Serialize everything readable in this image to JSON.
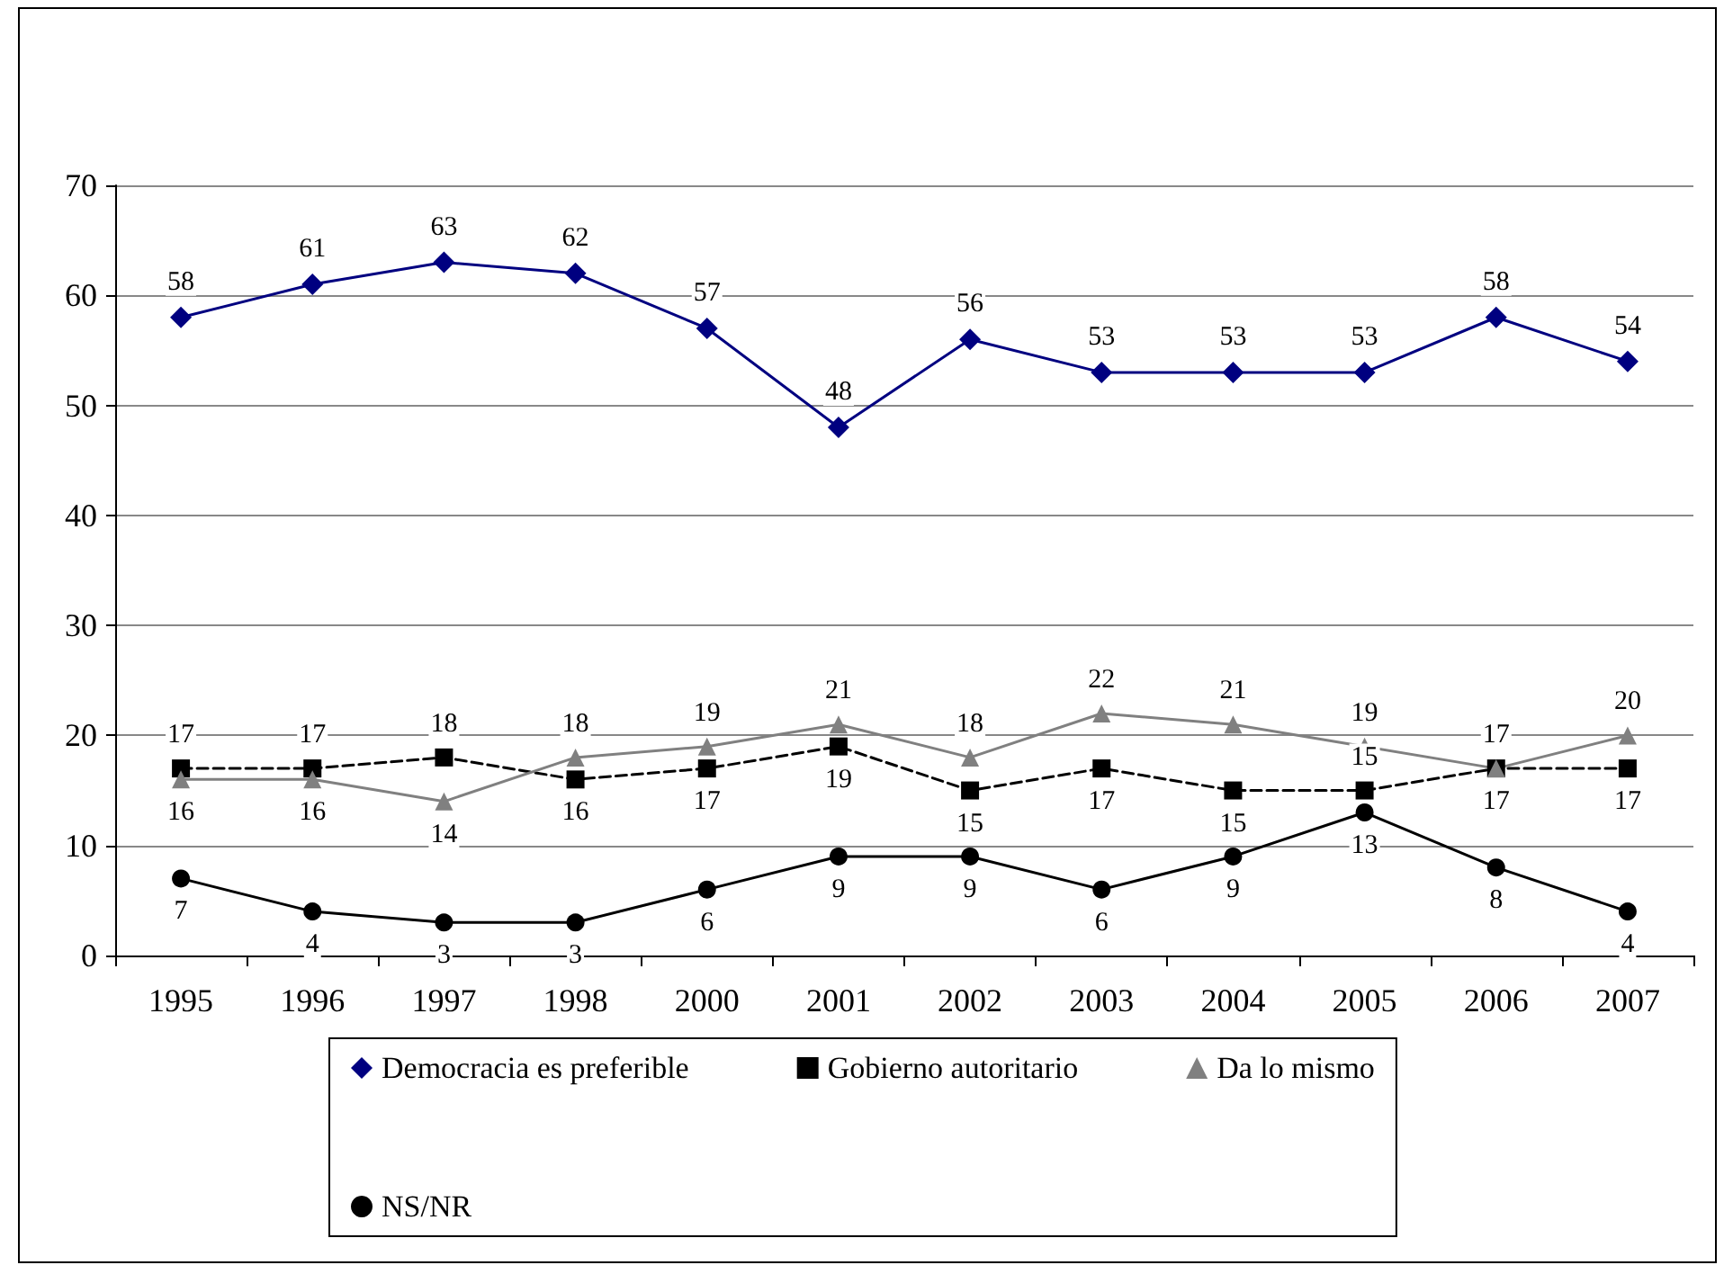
{
  "chart_data": {
    "type": "line",
    "categories": [
      "1995",
      "1996",
      "1997",
      "1998",
      "2000",
      "2001",
      "2002",
      "2003",
      "2004",
      "2005",
      "2006",
      "2007"
    ],
    "series": [
      {
        "name": "Democracia es preferible",
        "color": "#000080",
        "marker": "diamond",
        "line_style": "solid",
        "values": [
          58,
          61,
          63,
          62,
          57,
          48,
          56,
          53,
          53,
          53,
          58,
          54
        ]
      },
      {
        "name": "Gobierno autoritario",
        "color": "#000000",
        "marker": "square",
        "line_style": "dashed",
        "values": [
          17,
          17,
          18,
          16,
          17,
          19,
          15,
          17,
          15,
          15,
          17,
          17
        ]
      },
      {
        "name": "Da lo mismo",
        "color": "#808080",
        "marker": "triangle",
        "line_style": "solid",
        "values": [
          16,
          16,
          14,
          18,
          19,
          21,
          18,
          22,
          21,
          19,
          17,
          20
        ]
      },
      {
        "name": "NS/NR",
        "color": "#000000",
        "marker": "circle",
        "line_style": "solid",
        "values": [
          7,
          4,
          3,
          3,
          6,
          9,
          9,
          6,
          9,
          13,
          8,
          4
        ]
      }
    ],
    "ylim": [
      0,
      70
    ],
    "yticks": [
      0,
      10,
      20,
      30,
      40,
      50,
      60,
      70
    ],
    "grid": "y",
    "legend": "bottom",
    "data_labels": true
  }
}
